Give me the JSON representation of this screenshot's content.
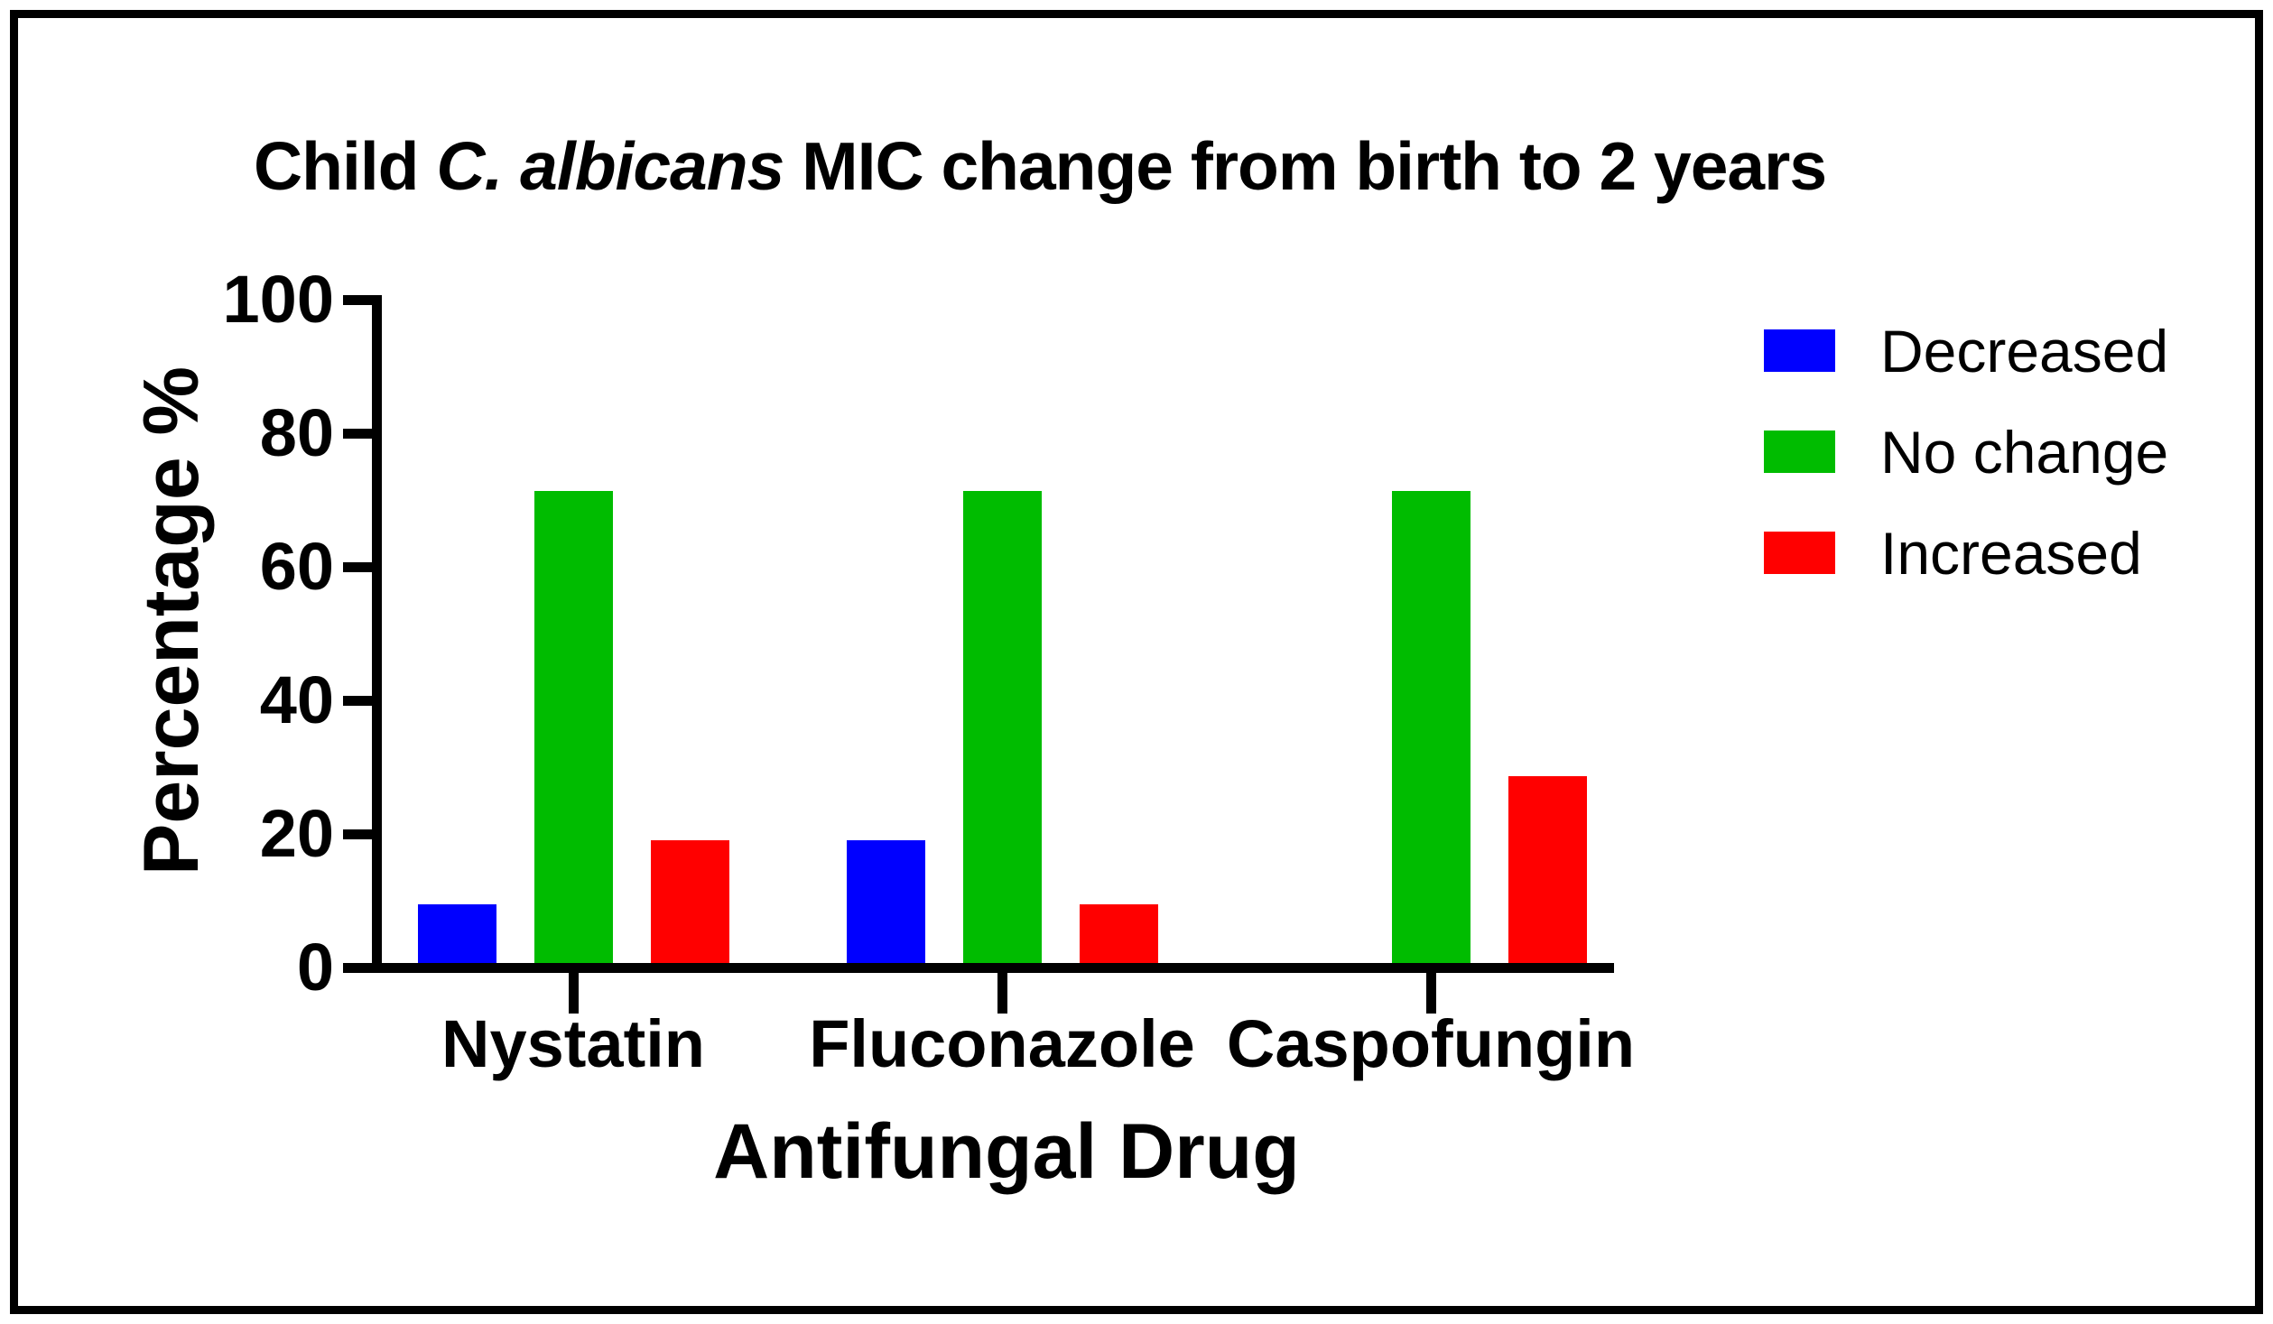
{
  "figure": {
    "title_prefix": "Child ",
    "title_italic": "C. albicans",
    "title_suffix": " MIC change from birth to 2 years"
  },
  "chart_data": {
    "type": "bar",
    "title": "Child C. albicans MIC change from birth to 2 years",
    "title_italic_segment": "C. albicans",
    "categories": [
      "Nystatin",
      "Fluconazole",
      "Caspofungin"
    ],
    "series": [
      {
        "name": "Decreased",
        "color": "#0000FF",
        "values": [
          9.5,
          19.0,
          0
        ]
      },
      {
        "name": "No change",
        "color": "#00BC00",
        "values": [
          71.4,
          71.4,
          71.4
        ]
      },
      {
        "name": "Increased",
        "color": "#FF0000",
        "values": [
          19.0,
          9.5,
          28.6
        ]
      }
    ],
    "xlabel": "Antifungal Drug",
    "ylabel": "Percentage %",
    "ylim": [
      0,
      100
    ],
    "yticks": [
      0,
      20,
      40,
      60,
      80,
      100
    ],
    "grid": false,
    "legend_position": "right",
    "axis_color": "#000000",
    "background_color": "#FFFFFF"
  }
}
